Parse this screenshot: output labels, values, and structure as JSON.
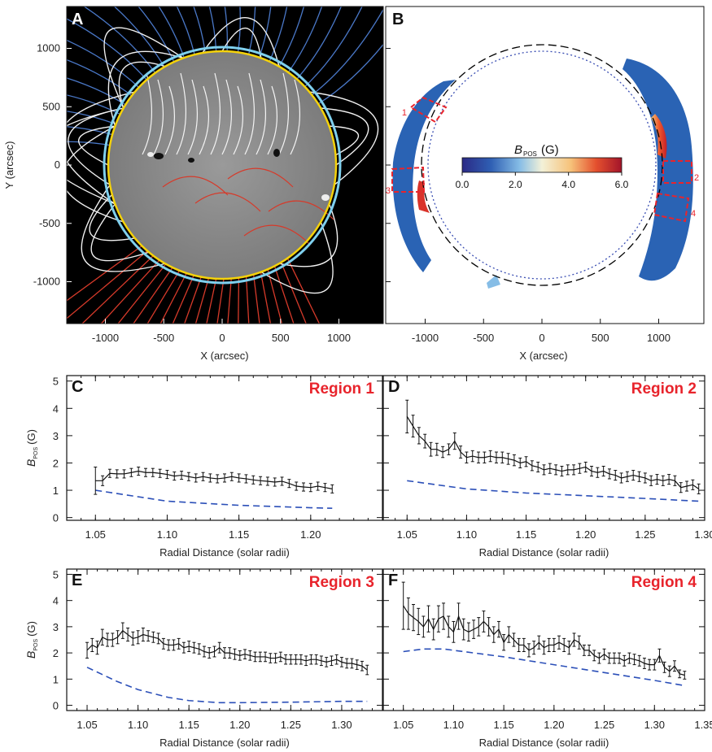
{
  "colors": {
    "red": "#e8242c",
    "dash_blue": "#2b4fb8",
    "field_blue": "#4a78c8",
    "field_red": "#d63a2a",
    "limb_yellow": "#f5d20a",
    "limb_cyan": "#7fd0ee"
  },
  "panelA": {
    "letter": "A",
    "xlabel": "X (arcsec)",
    "ylabel": "Y (arcsec)",
    "xticks": [
      "-1000",
      "-500",
      "0",
      "500",
      "1000"
    ],
    "yticks": [
      "1000",
      "500",
      "0",
      "-500",
      "-1000"
    ]
  },
  "panelB": {
    "letter": "B",
    "xlabel": "X (arcsec)",
    "xticks": [
      "-1000",
      "-500",
      "0",
      "500",
      "1000"
    ],
    "colorbar": {
      "label_main": "B",
      "label_sub": "POS",
      "label_unit": "(G)",
      "ticks": [
        "0.0",
        "2.0",
        "4.0",
        "6.0"
      ],
      "range": [
        0,
        6
      ]
    },
    "boxes": [
      {
        "id": "1",
        "label": "1"
      },
      {
        "id": "2",
        "label": "2"
      },
      {
        "id": "3",
        "label": "3"
      },
      {
        "id": "4",
        "label": "4"
      }
    ]
  },
  "chart_data": [
    {
      "type": "line",
      "panel": "C",
      "title": "Region 1",
      "xlabel": "Radial Distance (solar radii)",
      "ylabel_main": "B",
      "ylabel_sub": "POS",
      "ylabel_unit": "(G)",
      "xlim": [
        1.03,
        1.25
      ],
      "ylim": [
        -0.1,
        5.2
      ],
      "xticks": [
        "1.05",
        "1.10",
        "1.15",
        "1.20"
      ],
      "yticks": [
        "0",
        "1",
        "2",
        "3",
        "4",
        "5"
      ],
      "series": [
        {
          "style": "errorbar",
          "x": [
            1.05,
            1.055,
            1.06,
            1.065,
            1.07,
            1.075,
            1.08,
            1.085,
            1.09,
            1.095,
            1.1,
            1.105,
            1.11,
            1.115,
            1.12,
            1.125,
            1.13,
            1.135,
            1.14,
            1.145,
            1.15,
            1.155,
            1.16,
            1.165,
            1.17,
            1.175,
            1.18,
            1.185,
            1.19,
            1.195,
            1.2,
            1.205,
            1.21,
            1.215
          ],
          "y": [
            1.35,
            1.35,
            1.62,
            1.6,
            1.6,
            1.65,
            1.7,
            1.65,
            1.65,
            1.62,
            1.58,
            1.52,
            1.55,
            1.5,
            1.45,
            1.5,
            1.45,
            1.42,
            1.45,
            1.5,
            1.45,
            1.42,
            1.38,
            1.35,
            1.33,
            1.3,
            1.33,
            1.25,
            1.15,
            1.12,
            1.1,
            1.15,
            1.1,
            1.05
          ],
          "err": [
            0.5,
            0.18,
            0.15,
            0.15,
            0.15,
            0.15,
            0.15,
            0.15,
            0.15,
            0.15,
            0.15,
            0.15,
            0.15,
            0.15,
            0.15,
            0.15,
            0.15,
            0.15,
            0.15,
            0.15,
            0.15,
            0.15,
            0.15,
            0.15,
            0.15,
            0.15,
            0.15,
            0.15,
            0.15,
            0.15,
            0.15,
            0.15,
            0.15,
            0.15
          ]
        },
        {
          "style": "dashed",
          "x": [
            1.05,
            1.1,
            1.15,
            1.2,
            1.215
          ],
          "y": [
            1.0,
            0.6,
            0.45,
            0.36,
            0.34
          ]
        }
      ]
    },
    {
      "type": "line",
      "panel": "D",
      "title": "Region 2",
      "xlabel": "Radial Distance (solar radii)",
      "xlim": [
        1.03,
        1.3
      ],
      "ylim": [
        -0.1,
        5.2
      ],
      "xticks": [
        "1.05",
        "1.10",
        "1.15",
        "1.20",
        "1.25",
        "1.30"
      ],
      "series": [
        {
          "style": "errorbar",
          "x": [
            1.05,
            1.055,
            1.06,
            1.065,
            1.07,
            1.075,
            1.08,
            1.085,
            1.09,
            1.095,
            1.1,
            1.105,
            1.11,
            1.115,
            1.12,
            1.125,
            1.13,
            1.135,
            1.14,
            1.145,
            1.15,
            1.155,
            1.16,
            1.165,
            1.17,
            1.175,
            1.18,
            1.185,
            1.19,
            1.195,
            1.2,
            1.205,
            1.21,
            1.215,
            1.22,
            1.225,
            1.23,
            1.235,
            1.24,
            1.245,
            1.25,
            1.255,
            1.26,
            1.265,
            1.27,
            1.275,
            1.28,
            1.285,
            1.29,
            1.295
          ],
          "y": [
            3.7,
            3.35,
            3.0,
            2.8,
            2.5,
            2.5,
            2.4,
            2.5,
            2.8,
            2.4,
            2.2,
            2.25,
            2.2,
            2.2,
            2.25,
            2.2,
            2.2,
            2.15,
            2.1,
            2.0,
            2.05,
            1.9,
            1.85,
            1.75,
            1.8,
            1.75,
            1.7,
            1.75,
            1.75,
            1.8,
            1.85,
            1.7,
            1.65,
            1.7,
            1.6,
            1.55,
            1.45,
            1.5,
            1.55,
            1.5,
            1.45,
            1.35,
            1.4,
            1.35,
            1.4,
            1.35,
            1.1,
            1.15,
            1.2,
            1.05
          ],
          "err": [
            0.6,
            0.4,
            0.3,
            0.25,
            0.25,
            0.22,
            0.2,
            0.2,
            0.3,
            0.22,
            0.2,
            0.2,
            0.2,
            0.2,
            0.2,
            0.2,
            0.2,
            0.2,
            0.2,
            0.18,
            0.18,
            0.18,
            0.18,
            0.18,
            0.18,
            0.18,
            0.18,
            0.18,
            0.18,
            0.18,
            0.18,
            0.18,
            0.18,
            0.18,
            0.18,
            0.18,
            0.18,
            0.18,
            0.18,
            0.18,
            0.18,
            0.18,
            0.18,
            0.18,
            0.18,
            0.18,
            0.18,
            0.18,
            0.18,
            0.18
          ]
        },
        {
          "style": "dashed",
          "x": [
            1.05,
            1.1,
            1.15,
            1.2,
            1.25,
            1.295
          ],
          "y": [
            1.35,
            1.05,
            0.9,
            0.8,
            0.7,
            0.6
          ]
        }
      ]
    },
    {
      "type": "line",
      "panel": "E",
      "title": "Region 3",
      "xlabel": "Radial Distance (solar radii)",
      "ylabel_main": "B",
      "ylabel_sub": "POS",
      "ylabel_unit": "(G)",
      "xlim": [
        1.03,
        1.34
      ],
      "ylim": [
        -0.2,
        5.2
      ],
      "xticks": [
        "1.05",
        "1.10",
        "1.15",
        "1.20",
        "1.25",
        "1.30"
      ],
      "yticks": [
        "0",
        "1",
        "2",
        "3",
        "4",
        "5"
      ],
      "series": [
        {
          "style": "errorbar",
          "x": [
            1.05,
            1.055,
            1.06,
            1.065,
            1.07,
            1.075,
            1.08,
            1.085,
            1.09,
            1.095,
            1.1,
            1.105,
            1.11,
            1.115,
            1.12,
            1.125,
            1.13,
            1.135,
            1.14,
            1.145,
            1.15,
            1.155,
            1.16,
            1.165,
            1.17,
            1.175,
            1.18,
            1.185,
            1.19,
            1.195,
            1.2,
            1.205,
            1.21,
            1.215,
            1.22,
            1.225,
            1.23,
            1.235,
            1.24,
            1.245,
            1.25,
            1.255,
            1.26,
            1.265,
            1.27,
            1.275,
            1.28,
            1.285,
            1.29,
            1.295,
            1.3,
            1.305,
            1.31,
            1.315,
            1.32,
            1.325
          ],
          "y": [
            2.1,
            2.3,
            2.2,
            2.6,
            2.5,
            2.5,
            2.6,
            2.85,
            2.7,
            2.55,
            2.6,
            2.7,
            2.65,
            2.6,
            2.55,
            2.35,
            2.3,
            2.3,
            2.35,
            2.2,
            2.25,
            2.2,
            2.15,
            2.05,
            2.0,
            2.05,
            2.2,
            2.0,
            2.0,
            1.95,
            1.9,
            1.95,
            1.9,
            1.85,
            1.85,
            1.85,
            1.8,
            1.8,
            1.85,
            1.75,
            1.75,
            1.75,
            1.75,
            1.7,
            1.75,
            1.75,
            1.7,
            1.65,
            1.7,
            1.75,
            1.65,
            1.6,
            1.6,
            1.55,
            1.5,
            1.35
          ],
          "err": [
            0.3,
            0.25,
            0.25,
            0.3,
            0.25,
            0.25,
            0.25,
            0.3,
            0.25,
            0.25,
            0.25,
            0.25,
            0.2,
            0.2,
            0.2,
            0.2,
            0.2,
            0.2,
            0.2,
            0.2,
            0.2,
            0.2,
            0.2,
            0.2,
            0.2,
            0.2,
            0.2,
            0.2,
            0.2,
            0.2,
            0.18,
            0.18,
            0.18,
            0.18,
            0.18,
            0.18,
            0.18,
            0.18,
            0.18,
            0.18,
            0.18,
            0.18,
            0.18,
            0.18,
            0.18,
            0.18,
            0.18,
            0.18,
            0.18,
            0.18,
            0.18,
            0.18,
            0.18,
            0.18,
            0.18,
            0.18
          ]
        },
        {
          "style": "dashed",
          "x": [
            1.05,
            1.08,
            1.1,
            1.13,
            1.15,
            1.18,
            1.2,
            1.25,
            1.3,
            1.325
          ],
          "y": [
            1.45,
            0.9,
            0.6,
            0.3,
            0.18,
            0.1,
            0.1,
            0.12,
            0.15,
            0.15
          ]
        }
      ]
    },
    {
      "type": "line",
      "panel": "F",
      "title": "Region 4",
      "xlabel": "Radial Distance (solar radii)",
      "xlim": [
        1.03,
        1.35
      ],
      "ylim": [
        -0.2,
        5.2
      ],
      "xticks": [
        "1.05",
        "1.10",
        "1.15",
        "1.20",
        "1.25",
        "1.30",
        "1.35"
      ],
      "series": [
        {
          "style": "errorbar",
          "x": [
            1.05,
            1.055,
            1.06,
            1.065,
            1.07,
            1.075,
            1.08,
            1.085,
            1.09,
            1.095,
            1.1,
            1.105,
            1.11,
            1.115,
            1.12,
            1.125,
            1.13,
            1.135,
            1.14,
            1.145,
            1.15,
            1.155,
            1.16,
            1.165,
            1.17,
            1.175,
            1.18,
            1.185,
            1.19,
            1.195,
            1.2,
            1.205,
            1.21,
            1.215,
            1.22,
            1.225,
            1.23,
            1.235,
            1.24,
            1.245,
            1.25,
            1.255,
            1.26,
            1.265,
            1.27,
            1.275,
            1.28,
            1.285,
            1.29,
            1.295,
            1.3,
            1.305,
            1.31,
            1.315,
            1.32,
            1.325,
            1.33
          ],
          "y": [
            3.8,
            3.5,
            3.35,
            3.2,
            3.0,
            3.3,
            2.9,
            3.3,
            3.4,
            3.0,
            2.8,
            3.4,
            2.9,
            2.8,
            2.9,
            3.0,
            3.2,
            3.0,
            2.7,
            2.9,
            2.4,
            2.7,
            2.5,
            2.3,
            2.3,
            2.1,
            2.2,
            2.4,
            2.2,
            2.3,
            2.3,
            2.4,
            2.3,
            2.2,
            2.5,
            2.4,
            2.1,
            2.1,
            1.9,
            1.8,
            1.95,
            1.8,
            1.8,
            1.8,
            1.7,
            1.8,
            1.75,
            1.7,
            1.6,
            1.55,
            1.55,
            1.9,
            1.45,
            1.3,
            1.5,
            1.2,
            1.15
          ],
          "err": [
            0.9,
            0.6,
            0.5,
            0.5,
            0.4,
            0.5,
            0.4,
            0.5,
            0.5,
            0.4,
            0.4,
            0.5,
            0.4,
            0.35,
            0.35,
            0.35,
            0.4,
            0.35,
            0.3,
            0.3,
            0.3,
            0.3,
            0.25,
            0.25,
            0.25,
            0.25,
            0.25,
            0.25,
            0.25,
            0.25,
            0.25,
            0.25,
            0.25,
            0.25,
            0.25,
            0.25,
            0.2,
            0.2,
            0.2,
            0.2,
            0.2,
            0.2,
            0.2,
            0.2,
            0.2,
            0.2,
            0.2,
            0.2,
            0.2,
            0.2,
            0.2,
            0.25,
            0.2,
            0.2,
            0.2,
            0.15,
            0.15
          ]
        },
        {
          "style": "dashed",
          "x": [
            1.05,
            1.07,
            1.09,
            1.1,
            1.15,
            1.2,
            1.25,
            1.3,
            1.33
          ],
          "y": [
            2.05,
            2.15,
            2.15,
            2.1,
            1.85,
            1.55,
            1.25,
            0.95,
            0.75
          ]
        }
      ]
    }
  ]
}
